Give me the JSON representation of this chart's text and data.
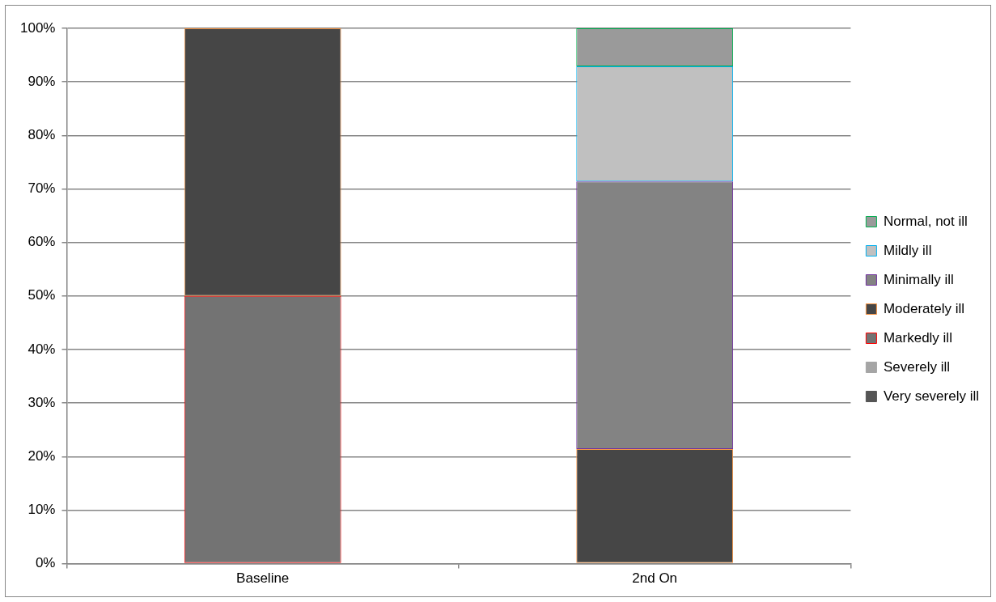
{
  "chart_data": {
    "type": "bar",
    "stacked": true,
    "categories": [
      "Baseline",
      "2nd On"
    ],
    "series": [
      {
        "name": "Very severely ill",
        "color": "#555555",
        "values": [
          0,
          0
        ]
      },
      {
        "name": "Severely ill",
        "color": "#a5a5a5",
        "values": [
          0,
          0
        ]
      },
      {
        "name": "Markedly ill",
        "color": "#737373",
        "values": [
          50,
          0
        ]
      },
      {
        "name": "Moderately ill",
        "color": "#464646",
        "values": [
          50,
          21.4
        ]
      },
      {
        "name": "Minimally ill",
        "color": "#838383",
        "values": [
          0,
          50
        ]
      },
      {
        "name": "Mildly ill",
        "color": "#c0c0c0",
        "values": [
          0,
          21.5
        ]
      },
      {
        "name": "Normal, not ill",
        "color": "#9a9a9a",
        "values": [
          0,
          7.1
        ]
      }
    ],
    "ylim": [
      0,
      100
    ],
    "yticks": [
      {
        "value": 0,
        "label": "0%"
      },
      {
        "value": 10,
        "label": "10%"
      },
      {
        "value": 20,
        "label": "20%"
      },
      {
        "value": 30,
        "label": "30%"
      },
      {
        "value": 40,
        "label": "40%"
      },
      {
        "value": 50,
        "label": "50%"
      },
      {
        "value": 60,
        "label": "60%"
      },
      {
        "value": 70,
        "label": "70%"
      },
      {
        "value": 80,
        "label": "80%"
      },
      {
        "value": 90,
        "label": "90%"
      },
      {
        "value": 100,
        "label": "100%"
      }
    ],
    "grid": "y",
    "legend": "right"
  }
}
